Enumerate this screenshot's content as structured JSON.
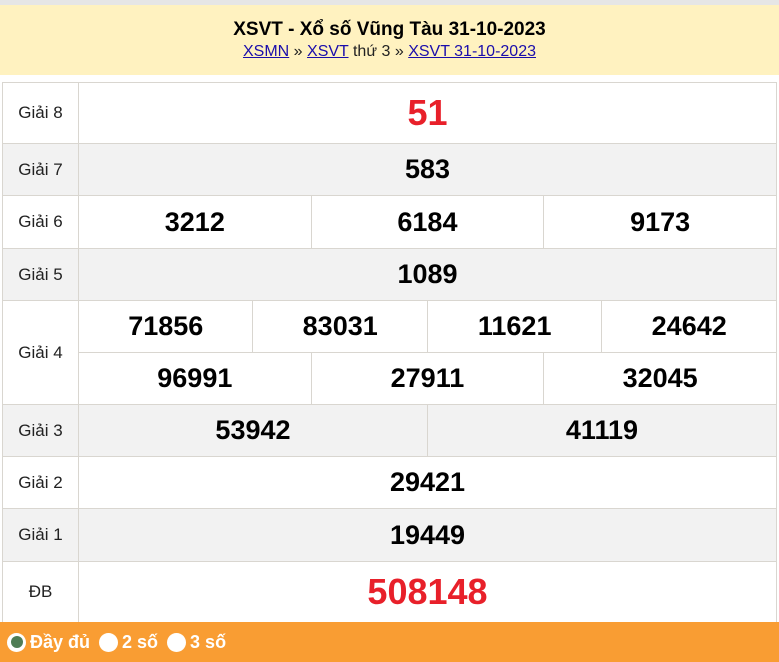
{
  "header": {
    "title": "XSVT - Xổ số Vũng Tàu 31-10-2023",
    "breadcrumb": {
      "link1": "XSMN",
      "sep1": "»",
      "link2": "XSVT",
      "text": "thứ 3",
      "sep2": "»",
      "link3": "XSVT 31-10-2023"
    }
  },
  "results": {
    "g8": {
      "label": "Giải 8",
      "values": [
        "51"
      ]
    },
    "g7": {
      "label": "Giải 7",
      "values": [
        "583"
      ]
    },
    "g6": {
      "label": "Giải 6",
      "values": [
        "3212",
        "6184",
        "9173"
      ]
    },
    "g5": {
      "label": "Giải 5",
      "values": [
        "1089"
      ]
    },
    "g4": {
      "label": "Giải 4",
      "values": [
        "71856",
        "83031",
        "11621",
        "24642",
        "96991",
        "27911",
        "32045"
      ]
    },
    "g3": {
      "label": "Giải 3",
      "values": [
        "53942",
        "41119"
      ]
    },
    "g2": {
      "label": "Giải 2",
      "values": [
        "29421"
      ]
    },
    "g1": {
      "label": "Giải 1",
      "values": [
        "19449"
      ]
    },
    "db": {
      "label": "ĐB",
      "values": [
        "508148"
      ]
    }
  },
  "footer": {
    "options": [
      {
        "label": "Đầy đủ",
        "selected": true
      },
      {
        "label": "2 số",
        "selected": false
      },
      {
        "label": "3 số",
        "selected": false
      }
    ]
  },
  "colors": {
    "highlight": "#e8202a",
    "footer": "#f99d33",
    "header": "#fff2c0"
  }
}
